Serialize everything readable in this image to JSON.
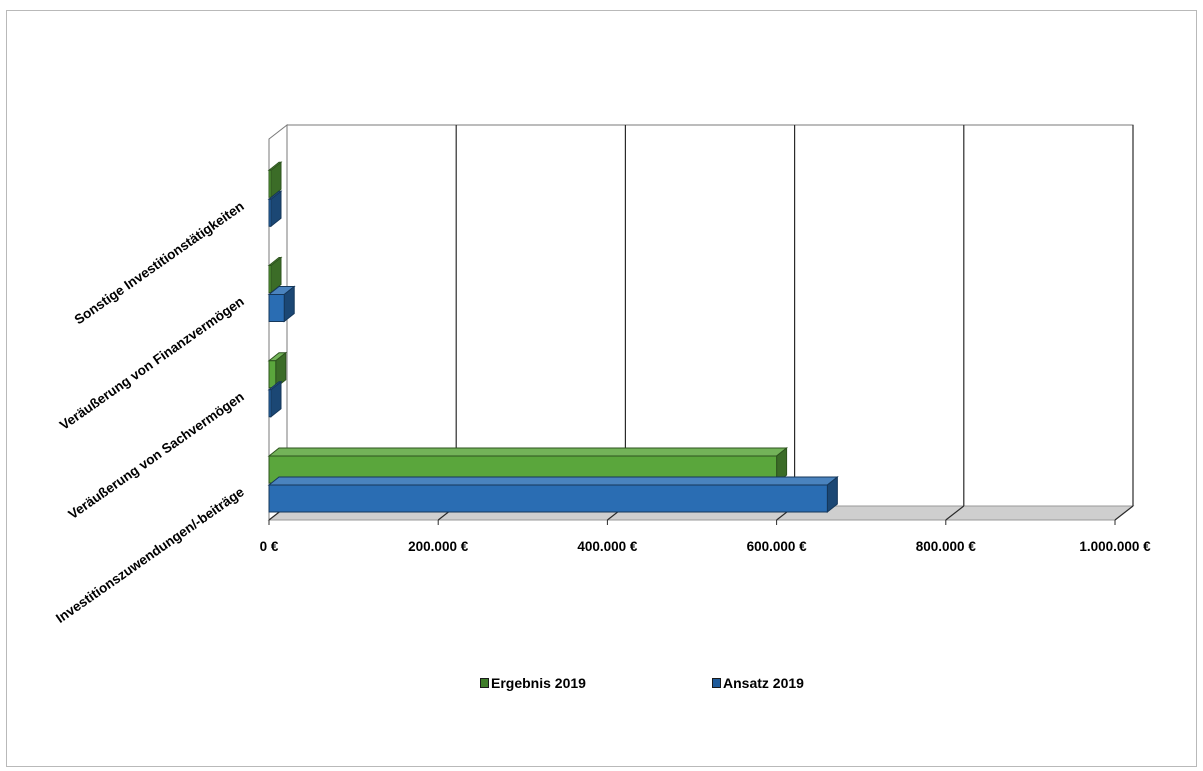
{
  "chart_data": {
    "type": "bar",
    "orientation": "horizontal",
    "style": "3d-clustered",
    "categories": [
      "Investitionszuwendungen/-beiträge",
      "Veräußerung von Sachvermögen",
      "Veräußerung von Finanzvermögen",
      "Sonstige Investitionstätigkeiten"
    ],
    "series": [
      {
        "name": "Ergebnis 2019",
        "color": "#5aa63c",
        "values": [
          600000,
          8000,
          0,
          0
        ]
      },
      {
        "name": "Ansatz 2019",
        "color": "#2a6db3",
        "values": [
          660000,
          0,
          18000,
          0
        ]
      }
    ],
    "x_ticks": [
      "0 €",
      "200.000 €",
      "400.000 €",
      "600.000 €",
      "800.000 €",
      "1.000.000 €"
    ],
    "xlim": [
      0,
      1000000
    ],
    "grid": true,
    "legend_position": "bottom"
  }
}
